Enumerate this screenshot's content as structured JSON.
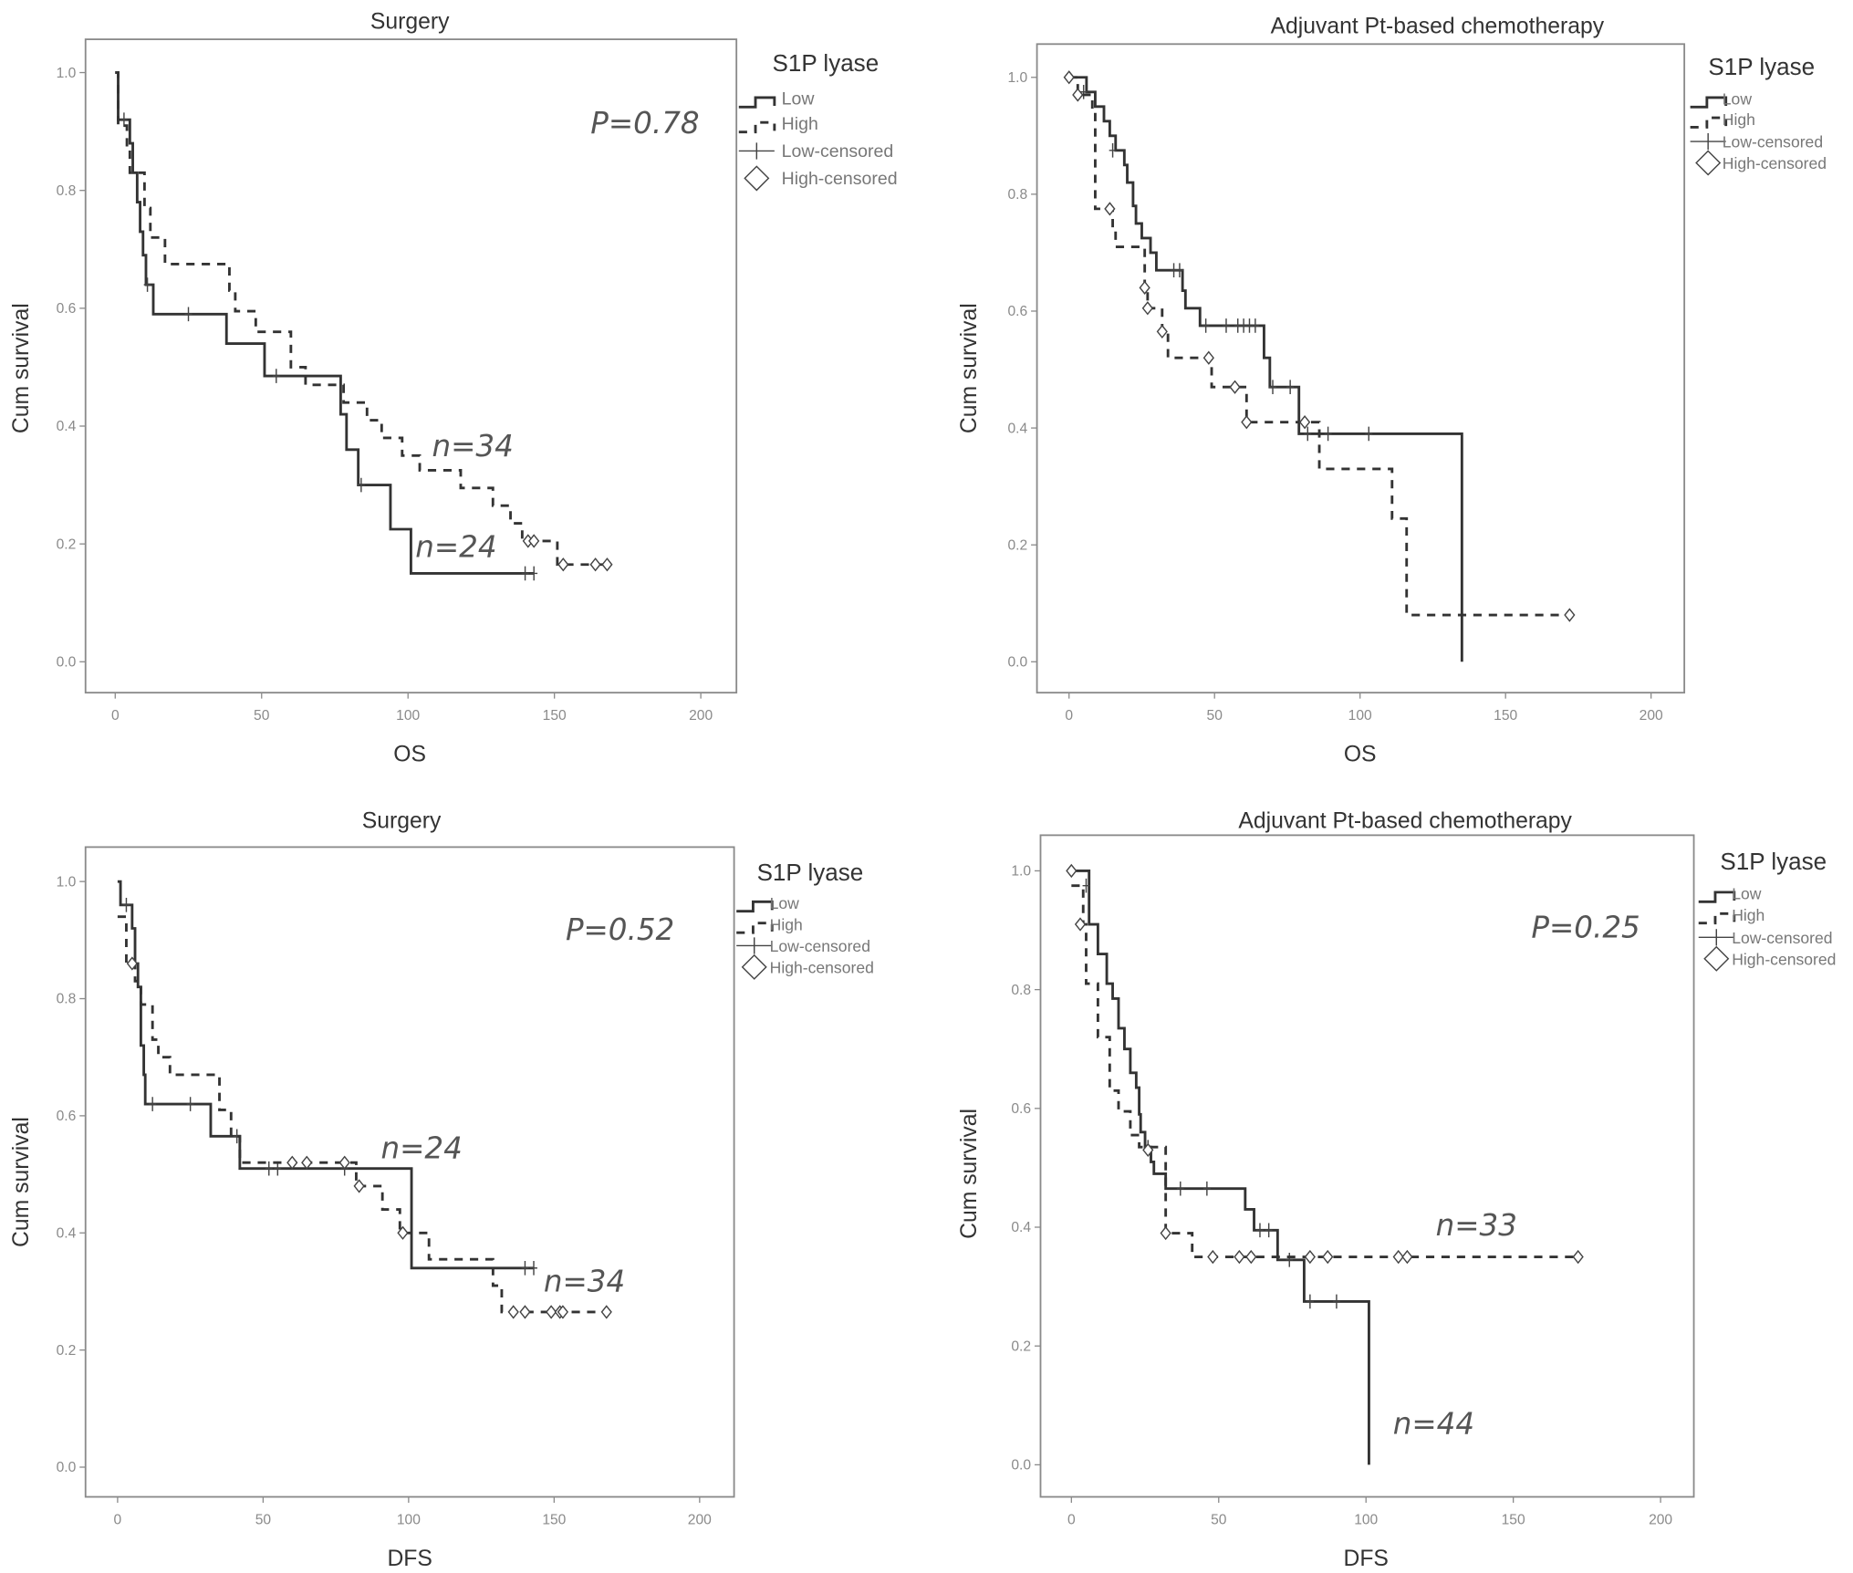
{
  "chart_data": [
    {
      "type": "line",
      "title": "Surgery",
      "xlabel": "OS",
      "ylabel": "Cum survival",
      "xlim": [
        0,
        200
      ],
      "ylim": [
        0,
        1
      ],
      "x_ticks": [
        "0",
        "50",
        "100",
        "150",
        "200"
      ],
      "y_ticks": [
        "0.0",
        "0.2",
        "0.4",
        "0.6",
        "0.8",
        "1.0"
      ],
      "legend": {
        "title": "S1P lyase",
        "position": "right",
        "items": [
          "Low",
          "High",
          "Low-censored",
          "High-censored"
        ]
      },
      "p_value": "P=0.78",
      "annotations": [
        "n=34",
        "n=24"
      ],
      "series": [
        {
          "name": "Low",
          "style": "solid",
          "end": 143,
          "steps": [
            [
              0,
              1
            ],
            [
              1,
              0.92
            ],
            [
              5,
              0.88
            ],
            [
              6,
              0.83
            ],
            [
              7.5,
              0.78
            ],
            [
              8.5,
              0.73
            ],
            [
              9.5,
              0.69
            ],
            [
              10.5,
              0.64
            ],
            [
              13,
              0.59
            ],
            [
              38,
              0.54
            ],
            [
              51,
              0.485
            ],
            [
              77,
              0.42
            ],
            [
              79,
              0.36
            ],
            [
              83,
              0.3
            ],
            [
              94,
              0.225
            ],
            [
              101,
              0.15
            ]
          ],
          "censored": [
            [
              3,
              0.92
            ],
            [
              11,
              0.64
            ],
            [
              25,
              0.59
            ],
            [
              55,
              0.485
            ],
            [
              84,
              0.3
            ],
            [
              140,
              0.15
            ],
            [
              143,
              0.15
            ]
          ]
        },
        {
          "name": "High",
          "style": "dashed",
          "end": 168,
          "steps": [
            [
              0,
              1
            ],
            [
              1,
              0.91
            ],
            [
              4,
              0.87
            ],
            [
              5,
              0.83
            ],
            [
              10,
              0.77
            ],
            [
              12,
              0.72
            ],
            [
              17,
              0.675
            ],
            [
              39,
              0.63
            ],
            [
              41,
              0.595
            ],
            [
              48,
              0.56
            ],
            [
              60,
              0.5
            ],
            [
              65,
              0.47
            ],
            [
              78,
              0.44
            ],
            [
              86,
              0.41
            ],
            [
              91,
              0.38
            ],
            [
              98,
              0.35
            ],
            [
              104,
              0.325
            ],
            [
              118,
              0.295
            ],
            [
              129,
              0.265
            ],
            [
              135,
              0.235
            ],
            [
              139,
              0.205
            ],
            [
              151,
              0.165
            ]
          ],
          "censored": [
            [
              141,
              0.205
            ],
            [
              143,
              0.205
            ],
            [
              153,
              0.165
            ],
            [
              164,
              0.165
            ],
            [
              168,
              0.165
            ]
          ]
        }
      ]
    },
    {
      "type": "line",
      "title": "Adjuvant Pt-based chemotherapy",
      "xlabel": "OS",
      "ylabel": "Cum survival",
      "xlim": [
        0,
        200
      ],
      "ylim": [
        0,
        1
      ],
      "x_ticks": [
        "0",
        "50",
        "100",
        "150",
        "200"
      ],
      "y_ticks": [
        "0.0",
        "0.2",
        "0.4",
        "0.6",
        "0.8",
        "1.0"
      ],
      "legend": {
        "title": "S1P lyase",
        "position": "right",
        "items": [
          "Low",
          "High",
          "Low-censored",
          "High-censored"
        ]
      },
      "p_value": "",
      "annotations": [],
      "series": [
        {
          "name": "Low",
          "style": "solid",
          "end": 135,
          "drop_to_zero_at_end": true,
          "steps": [
            [
              0,
              1
            ],
            [
              6,
              0.975
            ],
            [
              9,
              0.95
            ],
            [
              12,
              0.925
            ],
            [
              14,
              0.9
            ],
            [
              16,
              0.875
            ],
            [
              19,
              0.85
            ],
            [
              20,
              0.82
            ],
            [
              22,
              0.78
            ],
            [
              23,
              0.75
            ],
            [
              25,
              0.725
            ],
            [
              28,
              0.7
            ],
            [
              30,
              0.67
            ],
            [
              39,
              0.635
            ],
            [
              40,
              0.605
            ],
            [
              45,
              0.575
            ],
            [
              67,
              0.52
            ],
            [
              69,
              0.47
            ],
            [
              79,
              0.39
            ]
          ],
          "censored": [
            [
              5,
              0.975
            ],
            [
              15,
              0.875
            ],
            [
              36,
              0.67
            ],
            [
              38,
              0.67
            ],
            [
              47,
              0.575
            ],
            [
              54,
              0.575
            ],
            [
              58,
              0.575
            ],
            [
              60,
              0.575
            ],
            [
              62,
              0.575
            ],
            [
              64,
              0.575
            ],
            [
              70,
              0.47
            ],
            [
              76,
              0.47
            ],
            [
              82,
              0.39
            ],
            [
              89,
              0.39
            ],
            [
              103,
              0.39
            ]
          ]
        },
        {
          "name": "High",
          "style": "dashed",
          "end": 172,
          "steps": [
            [
              0,
              1
            ],
            [
              3,
              0.97
            ],
            [
              8,
              0.94
            ],
            [
              9,
              0.775
            ],
            [
              15,
              0.74
            ],
            [
              16,
              0.71
            ],
            [
              26,
              0.64
            ],
            [
              27,
              0.605
            ],
            [
              32,
              0.565
            ],
            [
              34,
              0.52
            ],
            [
              49,
              0.47
            ],
            [
              61,
              0.41
            ],
            [
              86,
              0.33
            ],
            [
              111,
              0.245
            ],
            [
              116,
              0.08
            ]
          ],
          "censored": [
            [
              0,
              1
            ],
            [
              3,
              0.97
            ],
            [
              14,
              0.775
            ],
            [
              26,
              0.64
            ],
            [
              27,
              0.605
            ],
            [
              32,
              0.565
            ],
            [
              48,
              0.52
            ],
            [
              57,
              0.47
            ],
            [
              61,
              0.41
            ],
            [
              81,
              0.41
            ],
            [
              172,
              0.08
            ]
          ]
        }
      ]
    },
    {
      "type": "line",
      "title": "Surgery",
      "xlabel": "DFS",
      "ylabel": "Cum survival",
      "xlim": [
        0,
        200
      ],
      "ylim": [
        0,
        1
      ],
      "x_ticks": [
        "0",
        "50",
        "100",
        "150",
        "200"
      ],
      "y_ticks": [
        "0.0",
        "0.2",
        "0.4",
        "0.6",
        "0.8",
        "1.0"
      ],
      "legend": {
        "title": "S1P lyase",
        "position": "right",
        "items": [
          "Low",
          "High",
          "Low-censored",
          "High-censored"
        ]
      },
      "p_value": "P=0.52",
      "annotations": [
        "n=24",
        "n=34"
      ],
      "series": [
        {
          "name": "Low",
          "style": "solid",
          "end": 143,
          "steps": [
            [
              0,
              1
            ],
            [
              1,
              0.96
            ],
            [
              5,
              0.92
            ],
            [
              6,
              0.86
            ],
            [
              7,
              0.82
            ],
            [
              8,
              0.72
            ],
            [
              9,
              0.67
            ],
            [
              9.5,
              0.62
            ],
            [
              32,
              0.565
            ],
            [
              42,
              0.51
            ],
            [
              101,
              0.34
            ]
          ],
          "censored": [
            [
              3,
              0.96
            ],
            [
              12,
              0.62
            ],
            [
              25,
              0.62
            ],
            [
              41,
              0.565
            ],
            [
              52,
              0.51
            ],
            [
              55,
              0.51
            ],
            [
              78,
              0.51
            ],
            [
              140,
              0.34
            ],
            [
              143,
              0.34
            ]
          ]
        },
        {
          "name": "High",
          "style": "dashed",
          "end": 168,
          "steps": [
            [
              0,
              0.94
            ],
            [
              3,
              0.86
            ],
            [
              6,
              0.83
            ],
            [
              8,
              0.79
            ],
            [
              12,
              0.73
            ],
            [
              14,
              0.7
            ],
            [
              18,
              0.67
            ],
            [
              35,
              0.61
            ],
            [
              39,
              0.565
            ],
            [
              42,
              0.52
            ],
            [
              82,
              0.48
            ],
            [
              91,
              0.44
            ],
            [
              97,
              0.4
            ],
            [
              107,
              0.355
            ],
            [
              129,
              0.31
            ],
            [
              132,
              0.265
            ]
          ],
          "censored": [
            [
              5,
              0.86
            ],
            [
              60,
              0.52
            ],
            [
              65,
              0.52
            ],
            [
              78,
              0.52
            ],
            [
              83,
              0.48
            ],
            [
              98,
              0.4
            ],
            [
              136,
              0.265
            ],
            [
              140,
              0.265
            ],
            [
              149,
              0.265
            ],
            [
              152,
              0.265
            ],
            [
              153,
              0.265
            ],
            [
              168,
              0.265
            ]
          ]
        }
      ]
    },
    {
      "type": "line",
      "title": "Adjuvant Pt-based chemotherapy",
      "xlabel": "DFS",
      "ylabel": "Cum survival",
      "xlim": [
        0,
        200
      ],
      "ylim": [
        0,
        1
      ],
      "x_ticks": [
        "0",
        "50",
        "100",
        "150",
        "200"
      ],
      "y_ticks": [
        "0.0",
        "0.2",
        "0.4",
        "0.6",
        "0.8",
        "1.0"
      ],
      "legend": {
        "title": "S1P lyase",
        "position": "right",
        "items": [
          "Low",
          "High",
          "Low-censored",
          "High-censored"
        ]
      },
      "p_value": "P=0.25",
      "annotations": [
        "n=33",
        "n=44"
      ],
      "series": [
        {
          "name": "Low",
          "style": "solid",
          "end": 101,
          "drop_to_zero_at_end": true,
          "steps": [
            [
              0,
              1
            ],
            [
              6,
              0.91
            ],
            [
              9,
              0.86
            ],
            [
              12,
              0.81
            ],
            [
              14,
              0.785
            ],
            [
              16,
              0.735
            ],
            [
              18,
              0.7
            ],
            [
              20,
              0.66
            ],
            [
              22,
              0.635
            ],
            [
              23,
              0.59
            ],
            [
              23.5,
              0.56
            ],
            [
              25,
              0.535
            ],
            [
              27,
              0.51
            ],
            [
              28,
              0.49
            ],
            [
              32,
              0.465
            ],
            [
              59,
              0.43
            ],
            [
              62,
              0.395
            ],
            [
              70,
              0.345
            ],
            [
              79,
              0.275
            ]
          ],
          "censored": [
            [
              5,
              0.975
            ],
            [
              26,
              0.535
            ],
            [
              37,
              0.465
            ],
            [
              46,
              0.465
            ],
            [
              64,
              0.395
            ],
            [
              67,
              0.395
            ],
            [
              74,
              0.345
            ],
            [
              81,
              0.275
            ],
            [
              90,
              0.275
            ]
          ]
        },
        {
          "name": "High",
          "style": "dashed",
          "end": 172,
          "steps": [
            [
              0,
              0.975
            ],
            [
              4,
              0.91
            ],
            [
              5,
              0.81
            ],
            [
              9,
              0.72
            ],
            [
              13,
              0.63
            ],
            [
              16,
              0.595
            ],
            [
              20,
              0.555
            ],
            [
              23,
              0.535
            ],
            [
              32,
              0.39
            ],
            [
              41,
              0.35
            ]
          ],
          "censored": [
            [
              0,
              1
            ],
            [
              3,
              0.91
            ],
            [
              26,
              0.53
            ],
            [
              32,
              0.39
            ],
            [
              48,
              0.35
            ],
            [
              57,
              0.35
            ],
            [
              61,
              0.35
            ],
            [
              81,
              0.35
            ],
            [
              87,
              0.35
            ],
            [
              111,
              0.35
            ],
            [
              114,
              0.35
            ],
            [
              172,
              0.35
            ]
          ]
        }
      ]
    }
  ]
}
